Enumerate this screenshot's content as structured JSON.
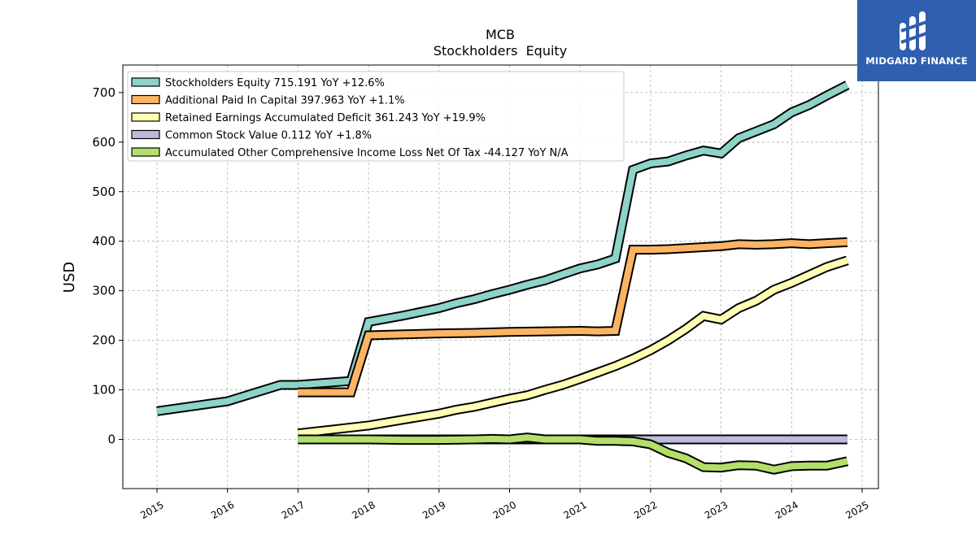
{
  "branding": {
    "company": "MIDGARD FINANCE",
    "logo_icon": "midgard-logo-icon"
  },
  "chart_data": {
    "type": "line",
    "title": "MCB",
    "subtitle": "Stockholders  Equity",
    "xlabel": "",
    "ylabel": "USD",
    "x_ticks": [
      "2015",
      "2016",
      "2017",
      "2018",
      "2019",
      "2020",
      "2021",
      "2022",
      "2023",
      "2024",
      "2025"
    ],
    "y_ticks": [
      0,
      100,
      200,
      300,
      400,
      500,
      600,
      700
    ],
    "xlim": [
      2014.5,
      2025.25
    ],
    "ylim": [
      -100,
      755
    ],
    "grid": true,
    "legend_position": "top-left",
    "series": [
      {
        "name": "Stockholders Equity",
        "legend": "Stockholders Equity  715.191 YoY +12.6%",
        "color": "#8dd3c7",
        "points": [
          [
            2015.0,
            57
          ],
          [
            2016.0,
            77
          ],
          [
            2016.75,
            110
          ],
          [
            2017.0,
            110
          ],
          [
            2017.75,
            118
          ],
          [
            2018.0,
            237
          ],
          [
            2018.5,
            250
          ],
          [
            2019.0,
            265
          ],
          [
            2019.25,
            275
          ],
          [
            2019.5,
            283
          ],
          [
            2019.75,
            293
          ],
          [
            2020.0,
            302
          ],
          [
            2020.25,
            312
          ],
          [
            2020.5,
            321
          ],
          [
            2020.75,
            333
          ],
          [
            2021.0,
            345
          ],
          [
            2021.25,
            353
          ],
          [
            2021.5,
            365
          ],
          [
            2021.75,
            544
          ],
          [
            2022.0,
            557
          ],
          [
            2022.25,
            561
          ],
          [
            2022.5,
            573
          ],
          [
            2022.75,
            583
          ],
          [
            2023.0,
            577
          ],
          [
            2023.25,
            608
          ],
          [
            2023.5,
            622
          ],
          [
            2023.75,
            636
          ],
          [
            2024.0,
            660
          ],
          [
            2024.25,
            675
          ],
          [
            2024.5,
            694
          ],
          [
            2024.79,
            715.191
          ]
        ]
      },
      {
        "name": "Additional Paid In Capital",
        "legend": "Additional Paid In Capital  397.963 YoY +1.1%",
        "color": "#fdb462",
        "points": [
          [
            2017.0,
            95
          ],
          [
            2017.75,
            95
          ],
          [
            2018.0,
            210
          ],
          [
            2018.5,
            212
          ],
          [
            2019.0,
            214
          ],
          [
            2019.5,
            215
          ],
          [
            2020.0,
            217
          ],
          [
            2020.5,
            218
          ],
          [
            2021.0,
            219
          ],
          [
            2021.25,
            218
          ],
          [
            2021.5,
            219
          ],
          [
            2021.75,
            383
          ],
          [
            2022.0,
            383
          ],
          [
            2022.25,
            384
          ],
          [
            2022.5,
            386
          ],
          [
            2022.75,
            388
          ],
          [
            2023.0,
            390
          ],
          [
            2023.25,
            394
          ],
          [
            2023.5,
            393
          ],
          [
            2023.75,
            394
          ],
          [
            2024.0,
            396
          ],
          [
            2024.25,
            394
          ],
          [
            2024.5,
            396
          ],
          [
            2024.79,
            397.963
          ]
        ]
      },
      {
        "name": "Retained Earnings Accumulated Deficit",
        "legend": "Retained Earnings Accumulated Deficit  361.243 YoY +19.9%",
        "color": "#ffffb3",
        "points": [
          [
            2017.0,
            12
          ],
          [
            2017.5,
            20
          ],
          [
            2018.0,
            28
          ],
          [
            2018.5,
            40
          ],
          [
            2019.0,
            52
          ],
          [
            2019.25,
            60
          ],
          [
            2019.5,
            66
          ],
          [
            2019.75,
            74
          ],
          [
            2020.0,
            82
          ],
          [
            2020.25,
            89
          ],
          [
            2020.5,
            100
          ],
          [
            2020.75,
            110
          ],
          [
            2021.0,
            122
          ],
          [
            2021.25,
            135
          ],
          [
            2021.5,
            148
          ],
          [
            2021.75,
            163
          ],
          [
            2022.0,
            180
          ],
          [
            2022.25,
            200
          ],
          [
            2022.5,
            223
          ],
          [
            2022.75,
            249
          ],
          [
            2023.0,
            242
          ],
          [
            2023.25,
            265
          ],
          [
            2023.5,
            280
          ],
          [
            2023.75,
            302
          ],
          [
            2024.0,
            316
          ],
          [
            2024.25,
            332
          ],
          [
            2024.5,
            348
          ],
          [
            2024.79,
            361.243
          ]
        ]
      },
      {
        "name": "Common Stock Value",
        "legend": "Common Stock Value  0.112 YoY +1.8%",
        "color": "#bebada",
        "points": [
          [
            2017.0,
            0
          ],
          [
            2024.79,
            0
          ]
        ]
      },
      {
        "name": "Accumulated Other Comprehensive Income Loss Net Of Tax",
        "legend": "Accumulated Other Comprehensive Income Loss Net Of Tax  -44.127 YoY N/A",
        "color": "#b3de69",
        "points": [
          [
            2017.0,
            0
          ],
          [
            2017.5,
            0
          ],
          [
            2018.0,
            0
          ],
          [
            2018.5,
            -1
          ],
          [
            2019.0,
            -1
          ],
          [
            2019.5,
            0
          ],
          [
            2019.75,
            1
          ],
          [
            2020.0,
            0
          ],
          [
            2020.25,
            4
          ],
          [
            2020.5,
            0
          ],
          [
            2020.75,
            0
          ],
          [
            2021.0,
            0
          ],
          [
            2021.25,
            -3
          ],
          [
            2021.5,
            -3
          ],
          [
            2021.75,
            -4
          ],
          [
            2022.0,
            -10
          ],
          [
            2022.25,
            -27
          ],
          [
            2022.5,
            -38
          ],
          [
            2022.75,
            -56
          ],
          [
            2023.0,
            -57
          ],
          [
            2023.25,
            -52
          ],
          [
            2023.5,
            -53
          ],
          [
            2023.75,
            -61
          ],
          [
            2024.0,
            -54
          ],
          [
            2024.25,
            -53
          ],
          [
            2024.5,
            -53
          ],
          [
            2024.79,
            -44.127
          ]
        ]
      }
    ]
  }
}
